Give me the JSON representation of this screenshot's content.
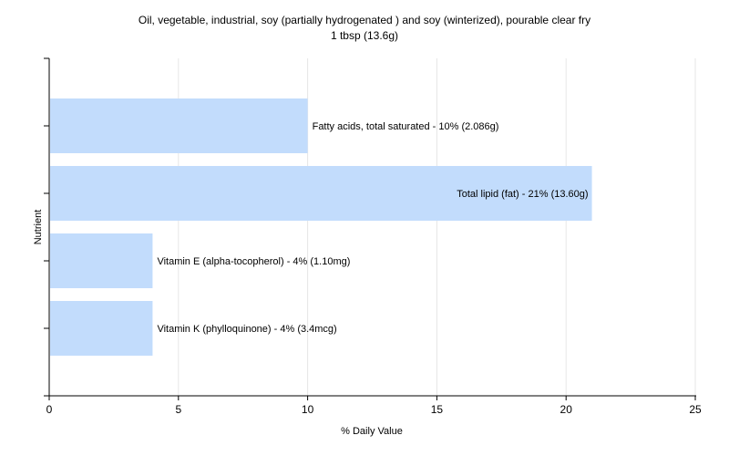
{
  "chart_data": {
    "type": "bar",
    "orientation": "horizontal",
    "title": "Oil, vegetable, industrial, soy (partially hydrogenated ) and soy (winterized), pourable clear fry",
    "subtitle": "1 tbsp (13.6g)",
    "xlabel": "% Daily Value",
    "ylabel": "Nutrient",
    "xlim": [
      0,
      25
    ],
    "xticks": [
      0,
      5,
      10,
      15,
      20,
      25
    ],
    "grid": true,
    "bar_color": "#c2dcfc",
    "categories": [
      "Fatty acids, total saturated",
      "Total lipid (fat)",
      "Vitamin E (alpha-tocopherol)",
      "Vitamin K (phylloquinone)"
    ],
    "values": [
      10,
      21,
      4,
      4
    ],
    "data_labels": [
      "Fatty acids, total saturated - 10% (2.086g)",
      "Total lipid (fat) - 21% (13.60g)",
      "Vitamin E (alpha-tocopherol) - 4% (1.10mg)",
      "Vitamin K (phylloquinone) - 4% (3.4mcg)"
    ]
  }
}
